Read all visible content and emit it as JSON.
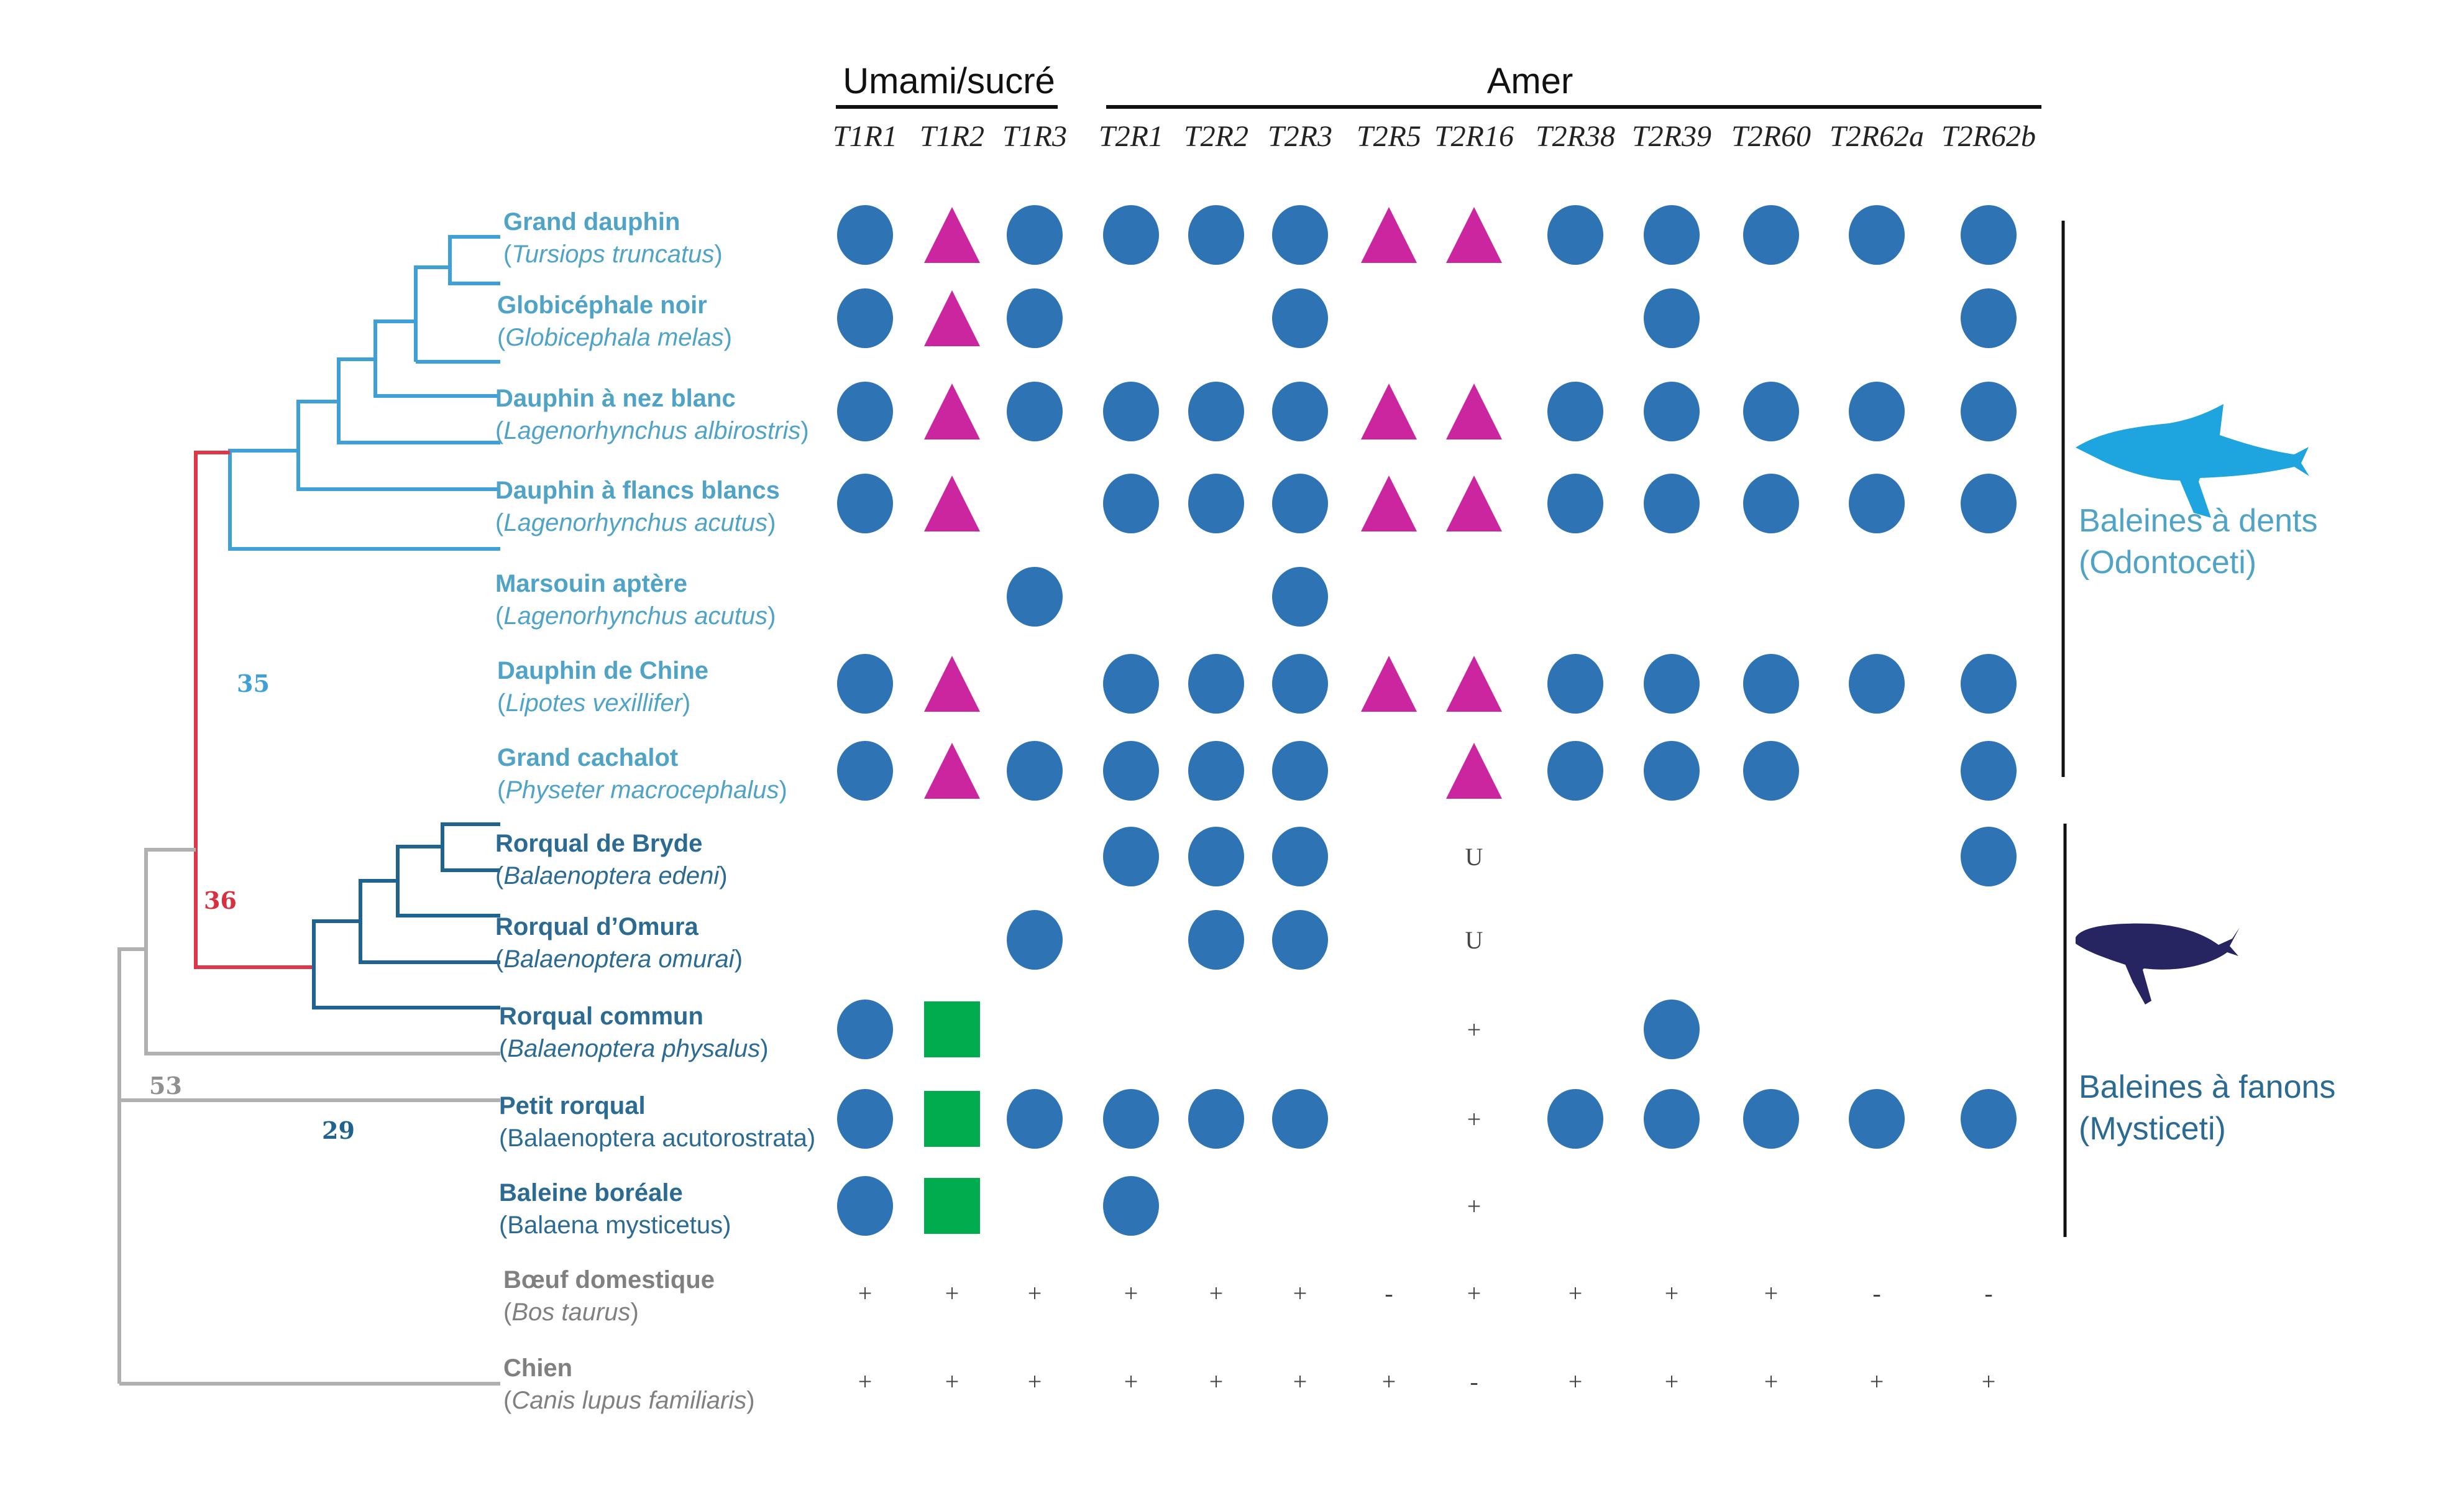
{
  "headers": {
    "groups": [
      {
        "label": "Umami/sucré",
        "columns": [
          "T1R1",
          "T1R2",
          "T1R3"
        ]
      },
      {
        "label": "Amer",
        "columns": [
          "T2R1",
          "T2R2",
          "T2R3",
          "T2R5",
          "T2R16",
          "T2R38",
          "T2R39",
          "T2R60",
          "T2R62a",
          "T2R62b"
        ]
      }
    ],
    "genes": [
      "T1R1",
      "T1R2",
      "T1R3",
      "T2R1",
      "T2R2",
      "T2R3",
      "T2R5",
      "T2R16",
      "T2R38",
      "T2R39",
      "T2R60",
      "T2R62a",
      "T2R62b"
    ]
  },
  "colors": {
    "odontoceti": "#4fa3c7",
    "odontoceti_branch": "#3ea0d6",
    "mysticeti": "#2a6a93",
    "mysticeti_branch": "#1f6491",
    "outgroup": "#808080",
    "outgroup_branch": "#b0b0b0",
    "red_branch": "#e0364a",
    "circle": "#2e74b5",
    "triangle": "#cc25a0",
    "square": "#00ac4e",
    "dolphin": "#1ea5e0",
    "baleen_whale": "#262562"
  },
  "legend_meaning": {
    "circle": "circle",
    "triangle": "triangle",
    "square": "square",
    "+": "+",
    "-": "-",
    "U": "U"
  },
  "species": [
    {
      "common": "Grand dauphin",
      "scientific": "Tursiops truncatus",
      "italic": true,
      "group": "odontoceti",
      "cells": [
        "circle",
        "triangle",
        "circle",
        "circle",
        "circle",
        "circle",
        "triangle",
        "triangle",
        "circle",
        "circle",
        "circle",
        "circle",
        "circle"
      ]
    },
    {
      "common": "Globicéphale noir",
      "scientific": "Globicephala melas",
      "italic": true,
      "group": "odontoceti",
      "cells": [
        "circle",
        "triangle",
        "circle",
        "",
        "",
        "circle",
        "",
        "",
        "",
        "circle",
        "",
        "",
        "circle"
      ]
    },
    {
      "common": "Dauphin à nez blanc",
      "scientific": "Lagenorhynchus albirostris",
      "italic": true,
      "group": "odontoceti",
      "cells": [
        "circle",
        "triangle",
        "circle",
        "circle",
        "circle",
        "circle",
        "triangle",
        "triangle",
        "circle",
        "circle",
        "circle",
        "circle",
        "circle"
      ]
    },
    {
      "common": "Dauphin à flancs blancs",
      "scientific": "Lagenorhynchus acutus",
      "italic": true,
      "group": "odontoceti",
      "cells": [
        "circle",
        "triangle",
        "",
        "circle",
        "circle",
        "circle",
        "triangle",
        "triangle",
        "circle",
        "circle",
        "circle",
        "circle",
        "circle"
      ]
    },
    {
      "common": "Marsouin aptère",
      "scientific": "Lagenorhynchus acutus",
      "italic": true,
      "group": "odontoceti",
      "cells": [
        "",
        "",
        "circle",
        "",
        "",
        "circle",
        "",
        "",
        "",
        "",
        "",
        "",
        ""
      ]
    },
    {
      "common": "Dauphin de Chine",
      "scientific": "Lipotes vexillifer",
      "italic": true,
      "group": "odontoceti",
      "cells": [
        "circle",
        "triangle",
        "",
        "circle",
        "circle",
        "circle",
        "triangle",
        "triangle",
        "circle",
        "circle",
        "circle",
        "circle",
        "circle"
      ]
    },
    {
      "common": "Grand cachalot",
      "scientific": "Physeter macrocephalus",
      "italic": true,
      "group": "odontoceti",
      "cells": [
        "circle",
        "triangle",
        "circle",
        "circle",
        "circle",
        "circle",
        "",
        "triangle",
        "circle",
        "circle",
        "circle",
        "",
        "circle"
      ]
    },
    {
      "common": "Rorqual de Bryde",
      "scientific": "Balaenoptera edeni",
      "italic": true,
      "group": "mysticeti",
      "cells": [
        "",
        "",
        "",
        "circle",
        "circle",
        "circle",
        "",
        "U",
        "",
        "",
        "",
        "",
        "circle"
      ]
    },
    {
      "common": "Rorqual d’Omura",
      "scientific": "Balaenoptera omurai",
      "italic": true,
      "group": "mysticeti",
      "cells": [
        "",
        "",
        "circle",
        "",
        "circle",
        "circle",
        "",
        "U",
        "",
        "",
        "",
        "",
        ""
      ]
    },
    {
      "common": "Rorqual commun",
      "scientific": "Balaenoptera physalus",
      "italic": true,
      "group": "mysticeti",
      "cells": [
        "circle",
        "square",
        "",
        "",
        "",
        "",
        "",
        "+",
        "",
        "circle",
        "",
        "",
        ""
      ]
    },
    {
      "common": "Petit rorqual",
      "scientific": "Balaenoptera acutorostrata",
      "italic": false,
      "group": "mysticeti",
      "cells": [
        "circle",
        "square",
        "circle",
        "circle",
        "circle",
        "circle",
        "",
        "+",
        "circle",
        "circle",
        "circle",
        "circle",
        "circle"
      ]
    },
    {
      "common": "Baleine boréale",
      "scientific": "Balaena mysticetus",
      "italic": false,
      "group": "mysticeti",
      "cells": [
        "circle",
        "square",
        "",
        "circle",
        "",
        "",
        "",
        "+",
        "",
        "",
        "",
        "",
        ""
      ]
    },
    {
      "common": "Bœuf domestique",
      "scientific": "Bos taurus",
      "italic": true,
      "group": "outgroup",
      "cells": [
        "+",
        "+",
        "+",
        "+",
        "+",
        "+",
        "-",
        "+",
        "+",
        "+",
        "+",
        "-",
        "-"
      ]
    },
    {
      "common": "Chien",
      "scientific": "Canis lupus familiaris",
      "italic": true,
      "group": "outgroup",
      "cells": [
        "+",
        "+",
        "+",
        "+",
        "+",
        "+",
        "+",
        "-",
        "+",
        "+",
        "+",
        "+",
        "+"
      ]
    }
  ],
  "tree": {
    "node_labels": [
      {
        "id": "odontoceti",
        "label": "35",
        "color_key": "odontoceti_branch"
      },
      {
        "id": "cetacea",
        "label": "36",
        "color_key": "red_branch"
      },
      {
        "id": "mysticeti",
        "label": "29",
        "color_key": "mysticeti_branch"
      },
      {
        "id": "cetartiodactyla",
        "label": "53",
        "color_key": "outgroup"
      }
    ]
  },
  "clades": [
    {
      "id": "odontoceti",
      "line1": "Baleines à dents",
      "line2": "(Odontoceti)",
      "icon": "dolphin-icon"
    },
    {
      "id": "mysticeti",
      "line1": "Baleines à fanons",
      "line2": "(Mysticeti)",
      "icon": "baleen-whale-icon"
    }
  ]
}
